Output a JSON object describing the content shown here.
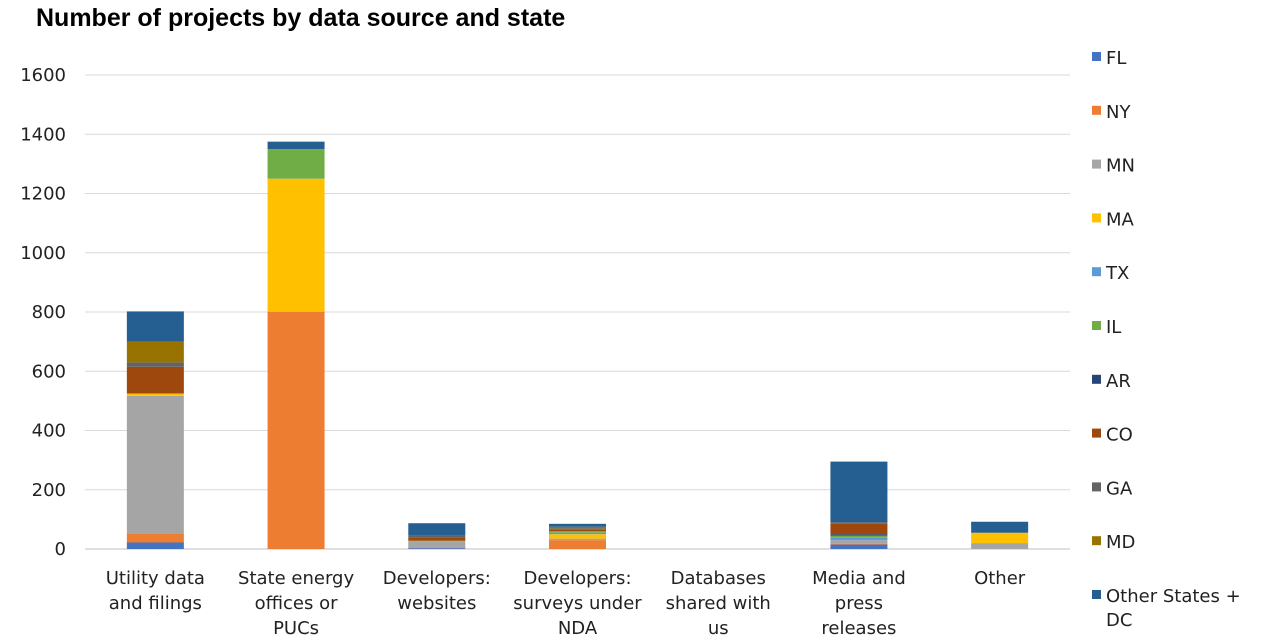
{
  "chart_data": {
    "type": "bar",
    "stacked": true,
    "title": "Number of projects by data source and state",
    "xlabel": "",
    "ylabel": "",
    "ylim": [
      0,
      1600
    ],
    "yticks": [
      0,
      200,
      400,
      600,
      800,
      1000,
      1200,
      1400,
      1600
    ],
    "grid": true,
    "legend_position": "right",
    "categories": [
      [
        "Utility data",
        "and filings"
      ],
      [
        "State energy",
        "offices or",
        "PUCs"
      ],
      [
        "Developers:",
        "websites"
      ],
      [
        "Developers:",
        "surveys under",
        "NDA"
      ],
      [
        "Databases",
        "shared with",
        "us"
      ],
      [
        "Media and",
        "press",
        "releases"
      ],
      [
        "Other"
      ]
    ],
    "series": [
      {
        "name": "FL",
        "color": "#4472c4",
        "values": [
          22,
          0,
          3,
          0,
          0,
          15,
          0
        ]
      },
      {
        "name": "NY",
        "color": "#ed7d31",
        "values": [
          30,
          800,
          3,
          30,
          0,
          3,
          0
        ]
      },
      {
        "name": "MN",
        "color": "#a5a5a5",
        "values": [
          465,
          0,
          20,
          5,
          0,
          12,
          20
        ]
      },
      {
        "name": "MA",
        "color": "#ffc000",
        "values": [
          8,
          450,
          0,
          15,
          0,
          0,
          35
        ]
      },
      {
        "name": "TX",
        "color": "#5b9bd5",
        "values": [
          0,
          0,
          0,
          5,
          0,
          10,
          0
        ]
      },
      {
        "name": "IL",
        "color": "#70ad47",
        "values": [
          0,
          100,
          2,
          5,
          0,
          5,
          0
        ]
      },
      {
        "name": "AR",
        "color": "#264478",
        "values": [
          0,
          0,
          0,
          0,
          0,
          5,
          0
        ]
      },
      {
        "name": "CO",
        "color": "#9e480e",
        "values": [
          90,
          0,
          12,
          5,
          0,
          35,
          0
        ]
      },
      {
        "name": "GA",
        "color": "#636363",
        "values": [
          15,
          0,
          5,
          5,
          0,
          5,
          0
        ]
      },
      {
        "name": "MD",
        "color": "#997300",
        "values": [
          70,
          0,
          0,
          5,
          0,
          0,
          0
        ]
      },
      {
        "name": "Other States + DC",
        "legend_lines": [
          "Other States +",
          "DC"
        ],
        "color": "#255e91",
        "values": [
          102,
          25,
          42,
          10,
          0,
          205,
          37
        ]
      }
    ]
  }
}
